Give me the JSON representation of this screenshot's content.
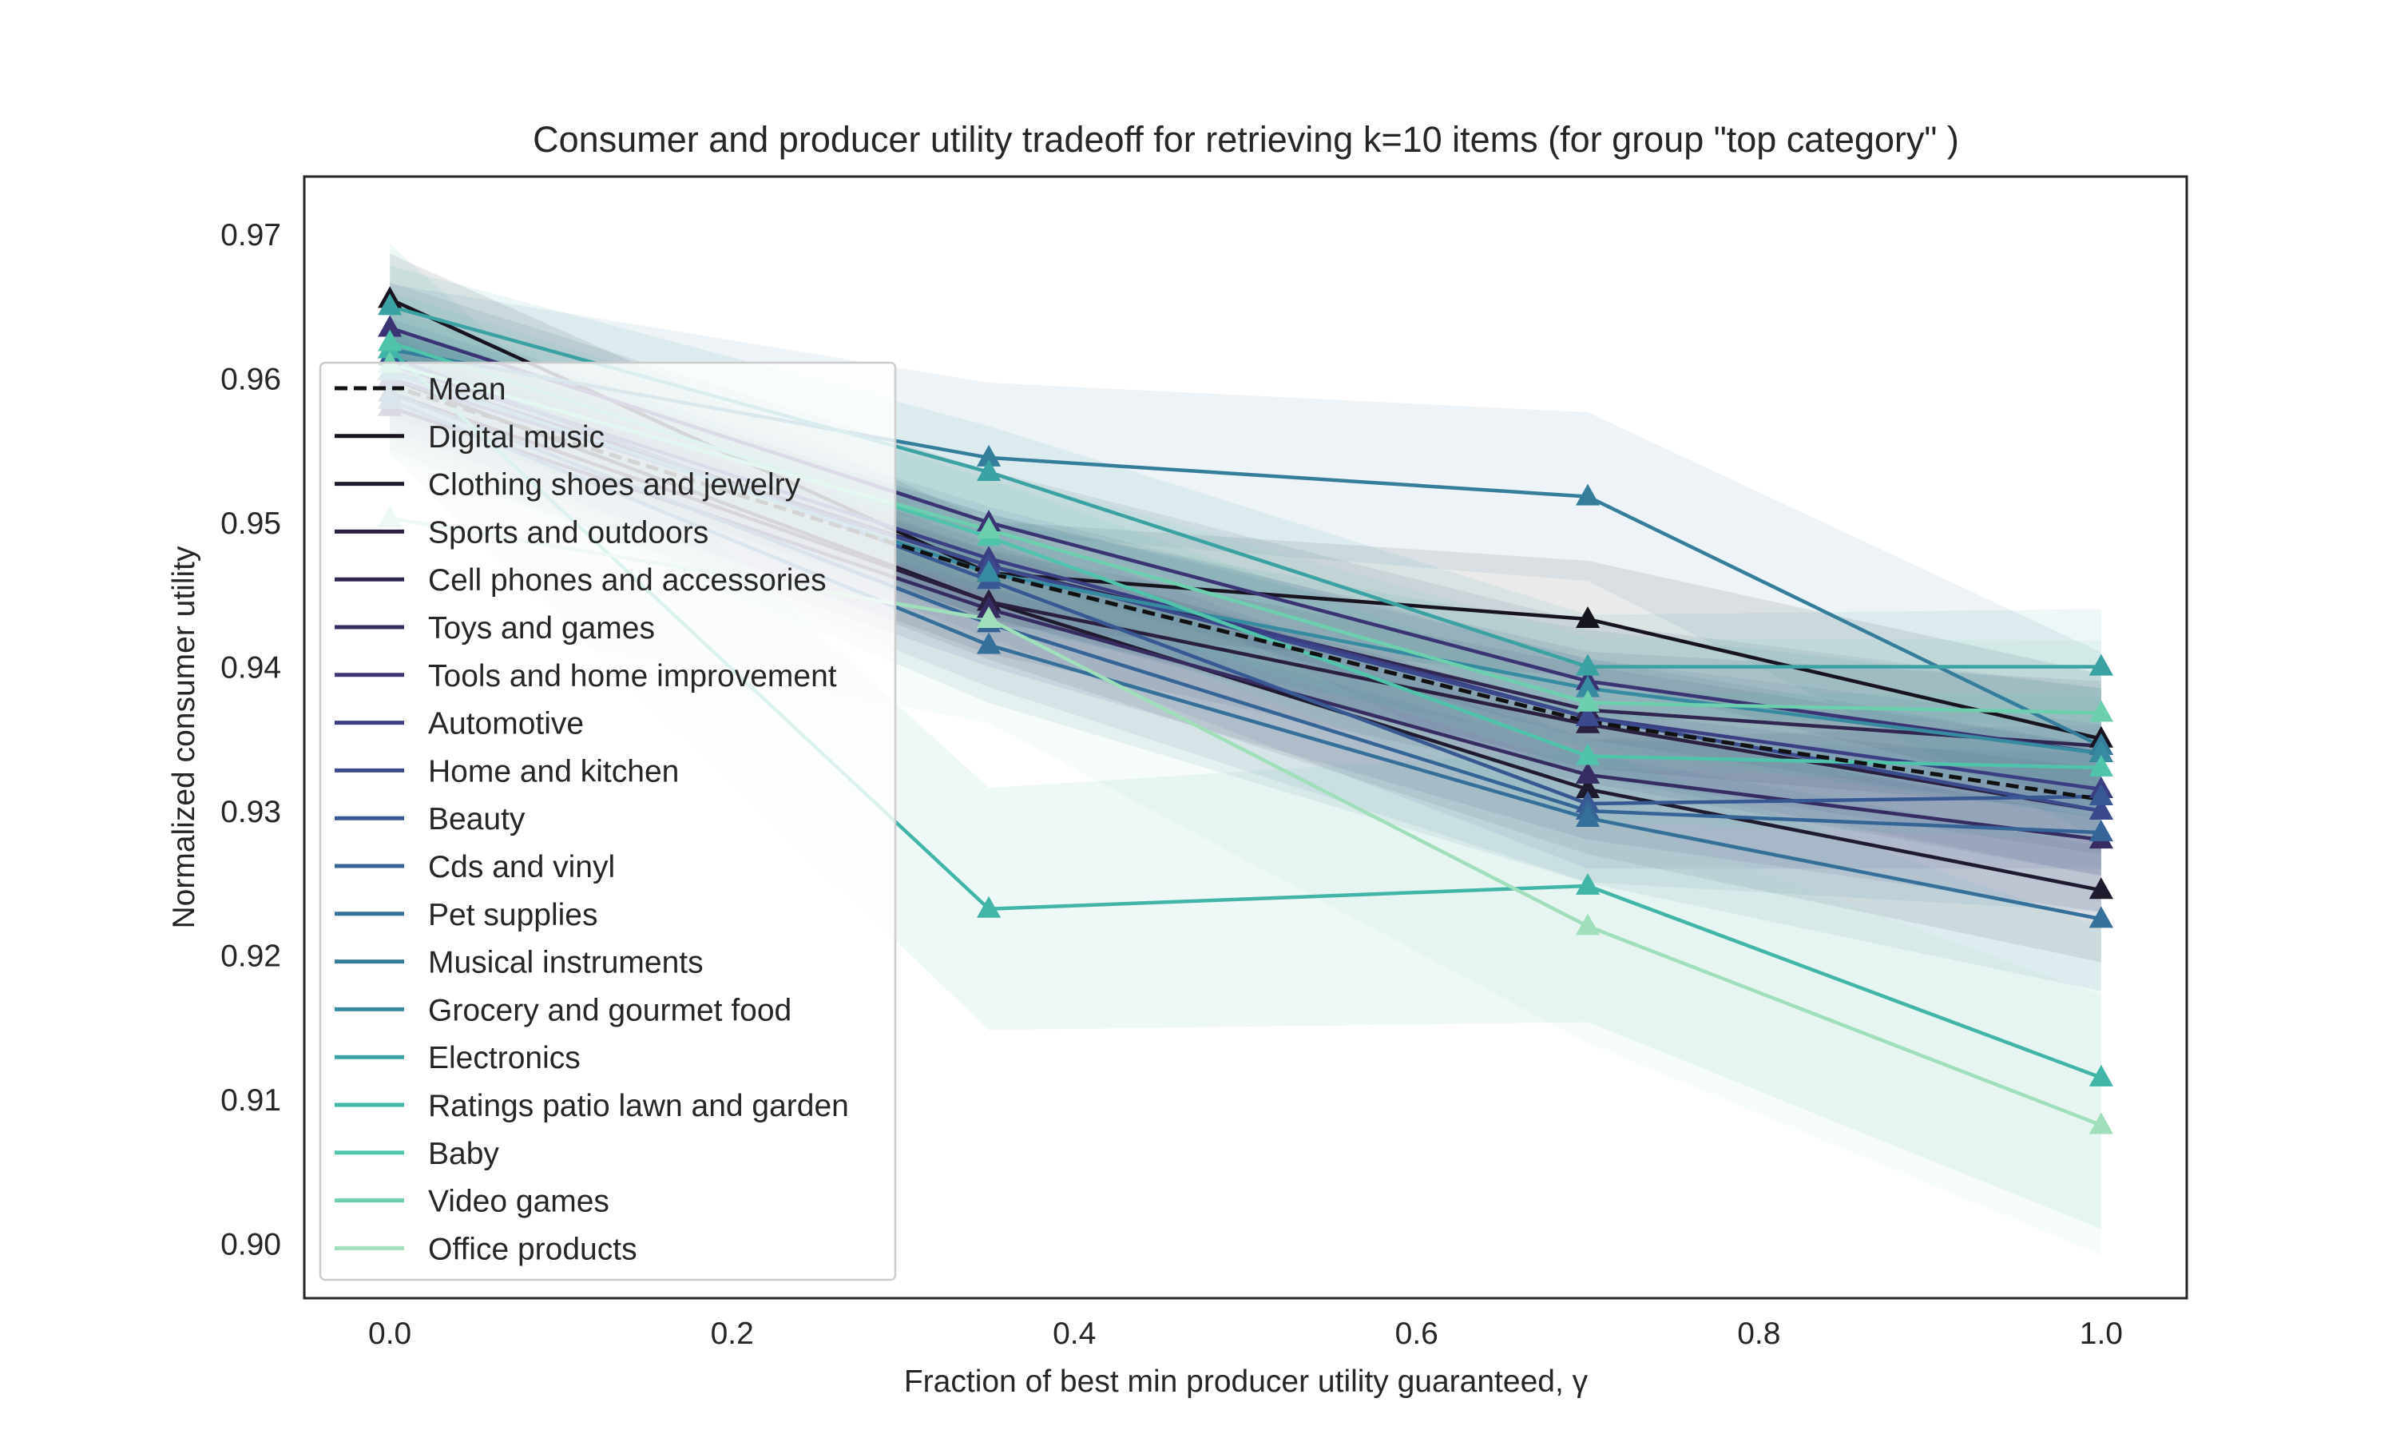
{
  "chart_data": {
    "type": "line",
    "title": "Consumer and producer utility tradeoff for retrieving k=10 items (for group \"top category\" )",
    "xlabel": "Fraction of best min producer utility guaranteed, γ",
    "ylabel": "Normalized consumer utility",
    "xlim": [
      -0.05,
      1.05
    ],
    "ylim": [
      0.8962,
      0.974
    ],
    "x_ticks": [
      0.0,
      0.2,
      0.4,
      0.6,
      0.8,
      1.0
    ],
    "x_tick_labels": [
      "0.0",
      "0.2",
      "0.4",
      "0.6",
      "0.8",
      "1.0"
    ],
    "y_ticks": [
      0.9,
      0.91,
      0.92,
      0.93,
      0.94,
      0.95,
      0.96,
      0.97
    ],
    "y_tick_labels": [
      "0.90",
      "0.91",
      "0.92",
      "0.93",
      "0.94",
      "0.95",
      "0.96",
      "0.97"
    ],
    "grid": false,
    "legend_position": "upper-left",
    "x": [
      0.0,
      0.35,
      0.7,
      1.0
    ],
    "series": [
      {
        "name": "Mean",
        "values": [
          0.9595,
          0.9465,
          0.9362,
          0.9308
        ],
        "color": "#111111",
        "dashed": true,
        "band": 0.0
      },
      {
        "name": "Digital music",
        "values": [
          0.9655,
          0.9465,
          0.9433,
          0.935
        ],
        "color": "#17131f",
        "dashed": false,
        "band": 0.0045
      },
      {
        "name": "Clothing shoes and jewelry",
        "values": [
          0.96,
          0.9445,
          0.9315,
          0.9245
        ],
        "color": "#201a2e",
        "dashed": false,
        "band": 0.005
      },
      {
        "name": "Sports and outdoors",
        "values": [
          0.959,
          0.9445,
          0.936,
          0.93
        ],
        "color": "#2a1f3f",
        "dashed": false,
        "band": 0.0045
      },
      {
        "name": "Cell phones and accessories",
        "values": [
          0.9605,
          0.947,
          0.937,
          0.9345
        ],
        "color": "#302650",
        "dashed": false,
        "band": 0.0045
      },
      {
        "name": "Toys and games",
        "values": [
          0.958,
          0.944,
          0.9325,
          0.928
        ],
        "color": "#362c62",
        "dashed": false,
        "band": 0.005
      },
      {
        "name": "Tools and home improvement",
        "values": [
          0.9635,
          0.95,
          0.939,
          0.934
        ],
        "color": "#3a3374",
        "dashed": false,
        "band": 0.0045
      },
      {
        "name": "Automotive",
        "values": [
          0.961,
          0.9475,
          0.9365,
          0.9315
        ],
        "color": "#3b3e83",
        "dashed": false,
        "band": 0.0045
      },
      {
        "name": "Home and kitchen",
        "values": [
          0.96,
          0.947,
          0.9365,
          0.93
        ],
        "color": "#3a4a8c",
        "dashed": false,
        "band": 0.0045
      },
      {
        "name": "Beauty",
        "values": [
          0.9615,
          0.946,
          0.9305,
          0.931
        ],
        "color": "#375892",
        "dashed": false,
        "band": 0.005
      },
      {
        "name": "Cds and vinyl",
        "values": [
          0.959,
          0.943,
          0.93,
          0.9285
        ],
        "color": "#356496",
        "dashed": false,
        "band": 0.0055
      },
      {
        "name": "Pet supplies",
        "values": [
          0.9585,
          0.9415,
          0.9295,
          0.9225
        ],
        "color": "#347099",
        "dashed": false,
        "band": 0.005
      },
      {
        "name": "Musical instruments",
        "values": [
          0.962,
          0.9545,
          0.9518,
          0.9345
        ],
        "color": "#347e9c",
        "dashed": false,
        "band": 0.0065
      },
      {
        "name": "Grocery and gourmet food",
        "values": [
          0.9605,
          0.9465,
          0.9385,
          0.934
        ],
        "color": "#368ba0",
        "dashed": false,
        "band": 0.0045
      },
      {
        "name": "Electronics",
        "values": [
          0.965,
          0.9535,
          0.94,
          0.94
        ],
        "color": "#3ba2a4",
        "dashed": false,
        "band": 0.004
      },
      {
        "name": "Ratings patio lawn and garden",
        "values": [
          0.962,
          0.9232,
          0.9248,
          0.9115
        ],
        "color": "#41b5a8",
        "dashed": false,
        "band": 0.0105
      },
      {
        "name": "Baby",
        "values": [
          0.9625,
          0.949,
          0.9338,
          0.933
        ],
        "color": "#4fc4ab",
        "dashed": false,
        "band": 0.005
      },
      {
        "name": "Video games",
        "values": [
          0.961,
          0.9495,
          0.9375,
          0.9368
        ],
        "color": "#6ccfae",
        "dashed": false,
        "band": 0.005
      },
      {
        "name": "Office products",
        "values": [
          0.9503,
          0.9433,
          0.922,
          0.9082
        ],
        "color": "#9fdfba",
        "dashed": false,
        "band": 0.009
      }
    ]
  }
}
